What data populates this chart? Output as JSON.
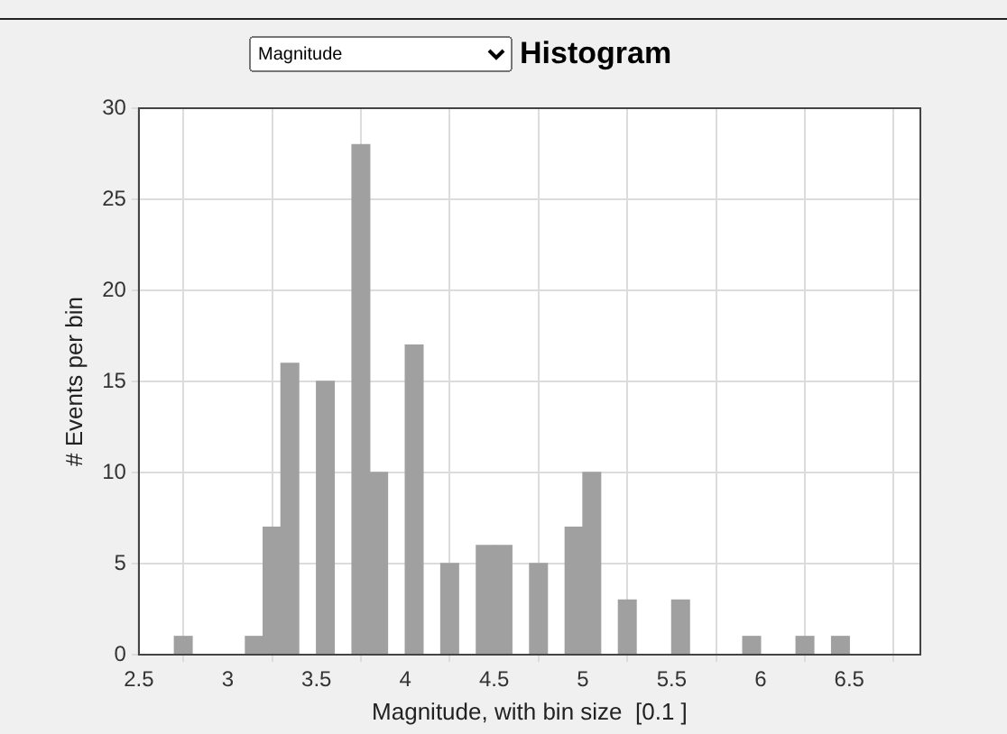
{
  "chart_data": {
    "type": "histogram",
    "title": "Histogram",
    "annotations": [
      "Magnitude"
    ],
    "xlabel": "Magnitude, with bin size  [0.1 ]",
    "ylabel": "# Events per bin",
    "bins": [
      2.6,
      2.7,
      2.8,
      2.9,
      3.0,
      3.1,
      3.2,
      3.3,
      3.4,
      3.5,
      3.6,
      3.7,
      3.8,
      3.9,
      4.0,
      4.1,
      4.2,
      4.3,
      4.4,
      4.5,
      4.6,
      4.7,
      4.8,
      4.9,
      5.0,
      5.1,
      5.2,
      5.3,
      5.4,
      5.5,
      5.6,
      5.7,
      5.8,
      5.9,
      6.0,
      6.1,
      6.2,
      6.3,
      6.4,
      6.5,
      6.6,
      6.7
    ],
    "values": [
      0,
      1,
      0,
      0,
      0,
      1,
      7,
      16,
      0,
      15,
      0,
      28,
      10,
      0,
      17,
      0,
      5,
      0,
      6,
      6,
      0,
      5,
      0,
      7,
      10,
      0,
      3,
      0,
      0,
      3,
      0,
      0,
      0,
      1,
      0,
      0,
      1,
      0,
      1,
      0,
      0
    ],
    "color": "#a0a0a0",
    "xlim": [
      2.5,
      6.9
    ],
    "xticks": [
      2.5,
      3,
      3.5,
      4,
      4.5,
      5,
      5.5,
      6,
      6.5
    ],
    "ylim": [
      0,
      30
    ],
    "yticks": [
      0,
      5,
      10,
      15,
      20,
      25,
      30
    ],
    "grid": true,
    "legend": false
  }
}
